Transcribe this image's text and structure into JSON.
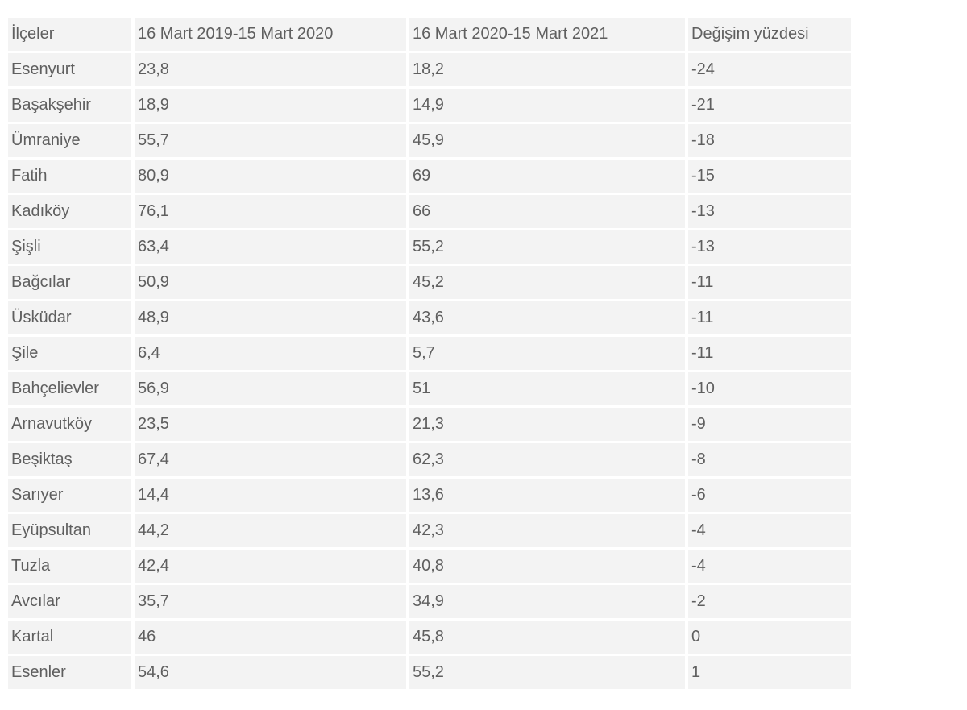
{
  "styles": {
    "page_bg": "#ffffff",
    "cell_bg": "#f3f3f3",
    "text_color": "#5f5f5f"
  },
  "chart_data": {
    "type": "table",
    "columns": [
      "İlçeler",
      "16 Mart 2019-15 Mart 2020",
      "16 Mart 2020-15 Mart 2021",
      "Değişim yüzdesi"
    ],
    "rows": [
      [
        "Esenyurt",
        "23,8",
        "18,2",
        "-24"
      ],
      [
        "Başakşehir",
        "18,9",
        "14,9",
        "-21"
      ],
      [
        "Ümraniye",
        "55,7",
        "45,9",
        "-18"
      ],
      [
        "Fatih",
        "80,9",
        "69",
        "-15"
      ],
      [
        "Kadıköy",
        "76,1",
        "66",
        "-13"
      ],
      [
        "Şişli",
        "63,4",
        "55,2",
        "-13"
      ],
      [
        "Bağcılar",
        "50,9",
        "45,2",
        "-11"
      ],
      [
        "Üsküdar",
        "48,9",
        "43,6",
        "-11"
      ],
      [
        "Şile",
        "6,4",
        "5,7",
        "-11"
      ],
      [
        "Bahçelievler",
        "56,9",
        "51",
        "-10"
      ],
      [
        "Arnavutköy",
        "23,5",
        "21,3",
        "-9"
      ],
      [
        "Beşiktaş",
        "67,4",
        "62,3",
        "-8"
      ],
      [
        "Sarıyer",
        "14,4",
        "13,6",
        "-6"
      ],
      [
        "Eyüpsultan",
        "44,2",
        "42,3",
        "-4"
      ],
      [
        "Tuzla",
        "42,4",
        "40,8",
        "-4"
      ],
      [
        "Avcılar",
        "35,7",
        "34,9",
        "-2"
      ],
      [
        "Kartal",
        "46",
        "45,8",
        "0"
      ],
      [
        "Esenler",
        "54,6",
        "55,2",
        "1"
      ]
    ]
  }
}
